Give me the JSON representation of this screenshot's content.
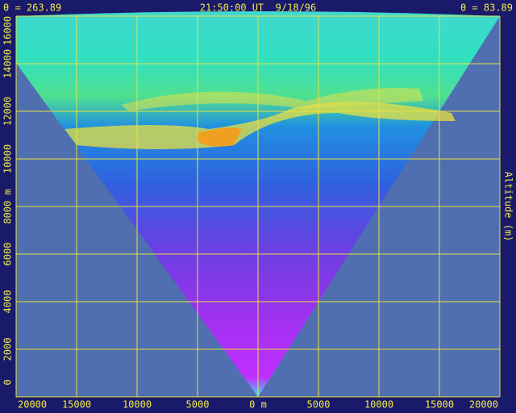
{
  "chart_data": {
    "type": "scan",
    "header": {
      "left": "θ = 263.89",
      "center": "21:50:00 UT  9/18/96",
      "right": "θ = 83.89"
    },
    "y_label": "Altitude (m)",
    "xlim": [
      -20000,
      20000
    ],
    "ylim": [
      0,
      16000
    ],
    "xticks": [
      {
        "value": -20000,
        "label": "20000"
      },
      {
        "value": -15000,
        "label": "15000"
      },
      {
        "value": -10000,
        "label": "10000"
      },
      {
        "value": -5000,
        "label": "5000"
      },
      {
        "value": 0,
        "label": "0 m"
      },
      5000,
      10000,
      15000,
      20000
    ],
    "yticks": [
      0,
      2000,
      4000,
      6000,
      {
        "value": 8000,
        "label": "8000 m"
      },
      10000,
      12000,
      14000,
      16000
    ],
    "grid": true,
    "grid_color": "#e8e040"
  }
}
